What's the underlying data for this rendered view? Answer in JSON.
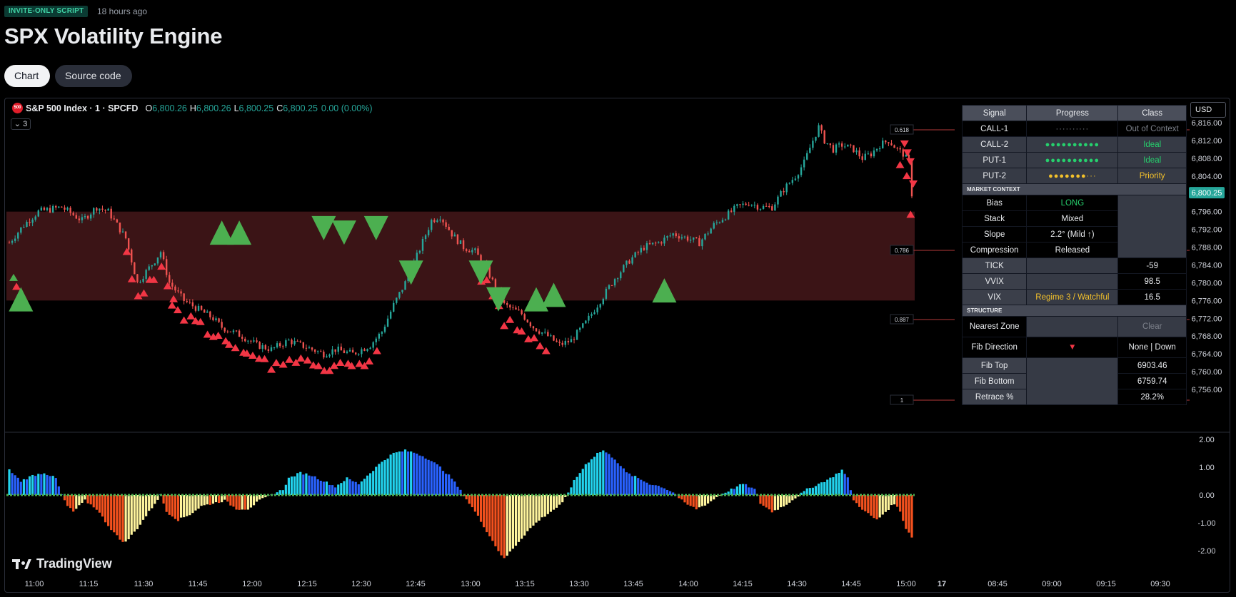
{
  "header": {
    "badge": "INVITE-ONLY SCRIPT",
    "timestamp": "18 hours ago",
    "title": "SPX Volatility Engine",
    "tabs": {
      "chart": "Chart",
      "source": "Source code"
    }
  },
  "symbol": {
    "logo": "500",
    "name": "S&P 500 Index · 1 · SPCFD",
    "open_k": "O",
    "open": "6,800.26",
    "high_k": "H",
    "high": "6,800.26",
    "low_k": "L",
    "low": "6,800.25",
    "close_k": "C",
    "close": "6,800.25",
    "change": "0.00 (0.00%)",
    "indicator_count": "3"
  },
  "currency": "USD",
  "brand": "TradingView",
  "colors": {
    "up": "#26a69a",
    "down": "#ef5350",
    "zone": "#3b1416",
    "buy_marker": "#4caf50",
    "sell_marker": "#f23645",
    "hist_blue": "#2962ff",
    "hist_cyan": "#22d3ee",
    "hist_red": "#f4511e",
    "hist_yellow": "#fff59d"
  },
  "table": {
    "headers": {
      "signal": "Signal",
      "progress": "Progress",
      "class": "Class"
    },
    "signals": [
      {
        "name": "CALL-1",
        "progress": "··········",
        "class": "Out of Context"
      },
      {
        "name": "CALL-2",
        "progress": "●●●●●●●●●●",
        "class": "Ideal"
      },
      {
        "name": "PUT-1",
        "progress": "●●●●●●●●●●",
        "class": "Ideal"
      },
      {
        "name": "PUT-2",
        "progress": "●●●●●●●···",
        "class": "Priority"
      }
    ],
    "market_context_label": "MARKET CONTEXT",
    "bias_label": "Bias",
    "bias": "LONG",
    "stack_label": "Stack",
    "stack": "Mixed",
    "slope_label": "Slope",
    "slope": "2.2° (Mild ↑)",
    "compression_label": "Compression",
    "compression": "Released",
    "tick_label": "TICK",
    "tick": "-59",
    "vvix_label": "VVIX",
    "vvix": "98.5",
    "vix_label": "VIX",
    "vix_regime": "Regime 3 / Watchful",
    "vix": "16.5",
    "structure_label": "STRUCTURE",
    "nearest_zone_label": "Nearest Zone",
    "nearest_zone": "Clear",
    "fib_direction_label": "Fib Direction",
    "fib_direction_icon": "▼",
    "fib_direction": "None | Down",
    "fib_top_label": "Fib Top",
    "fib_top": "6903.46",
    "fib_bottom_label": "Fib Bottom",
    "fib_bottom": "6759.74",
    "retrace_label": "Retrace %",
    "retrace": "28.2%"
  },
  "chart_data": {
    "type": "candlestick",
    "price_axis": [
      "6,816.00",
      "6,812.00",
      "6,808.00",
      "6,804.00",
      "6,800.25",
      "6,796.00",
      "6,792.00",
      "6,788.00",
      "6,784.00",
      "6,780.00",
      "6,776.00",
      "6,772.00",
      "6,768.00",
      "6,764.00",
      "6,760.00",
      "6,756.00"
    ],
    "last_price": "6,800.25",
    "osc_axis": [
      "2.00",
      "1.00",
      "0.00",
      "-1.00",
      "-2.00"
    ],
    "time_axis": [
      "11:00",
      "11:15",
      "11:30",
      "11:45",
      "12:00",
      "12:15",
      "12:30",
      "12:45",
      "13:00",
      "13:15",
      "13:30",
      "13:45",
      "14:00",
      "14:15",
      "14:30",
      "14:45",
      "15:00",
      "17",
      "08:45",
      "09:00",
      "09:15",
      "09:30"
    ],
    "fib_labels": [
      "0.618",
      "0.786",
      "0.887",
      "1"
    ],
    "zone_range": [
      6776,
      6796
    ],
    "price_path": [
      [
        0,
        6789
      ],
      [
        5,
        6793
      ],
      [
        10,
        6796
      ],
      [
        18,
        6797
      ],
      [
        25,
        6794
      ],
      [
        30,
        6797
      ],
      [
        34,
        6796
      ],
      [
        40,
        6790
      ],
      [
        44,
        6780
      ],
      [
        50,
        6785
      ],
      [
        52,
        6787
      ],
      [
        55,
        6780
      ],
      [
        60,
        6776
      ],
      [
        65,
        6774
      ],
      [
        70,
        6772
      ],
      [
        73,
        6770
      ],
      [
        80,
        6768
      ],
      [
        85,
        6766
      ],
      [
        90,
        6765
      ],
      [
        96,
        6767
      ],
      [
        100,
        6766
      ],
      [
        108,
        6764
      ],
      [
        112,
        6765
      ],
      [
        118,
        6764
      ],
      [
        124,
        6766
      ],
      [
        128,
        6769
      ],
      [
        132,
        6775
      ],
      [
        136,
        6780
      ],
      [
        140,
        6786
      ],
      [
        145,
        6794
      ],
      [
        148,
        6795
      ],
      [
        152,
        6791
      ],
      [
        156,
        6788
      ],
      [
        160,
        6787
      ],
      [
        164,
        6783
      ],
      [
        170,
        6775
      ],
      [
        176,
        6773
      ],
      [
        180,
        6770
      ],
      [
        185,
        6768
      ],
      [
        189,
        6766
      ],
      [
        193,
        6767
      ],
      [
        198,
        6771
      ],
      [
        203,
        6776
      ],
      [
        208,
        6781
      ],
      [
        213,
        6785
      ],
      [
        218,
        6788
      ],
      [
        223,
        6789
      ],
      [
        228,
        6791
      ],
      [
        233,
        6790
      ],
      [
        237,
        6789
      ],
      [
        242,
        6793
      ],
      [
        246,
        6795
      ],
      [
        250,
        6797
      ],
      [
        254,
        6798
      ],
      [
        258,
        6797
      ],
      [
        262,
        6797
      ],
      [
        266,
        6801
      ],
      [
        270,
        6804
      ],
      [
        273,
        6807
      ],
      [
        276,
        6812
      ],
      [
        278,
        6815
      ],
      [
        280,
        6812
      ],
      [
        283,
        6810
      ],
      [
        286,
        6811
      ],
      [
        290,
        6810
      ],
      [
        293,
        6808
      ],
      [
        296,
        6809
      ],
      [
        299,
        6811
      ],
      [
        302,
        6812
      ],
      [
        305,
        6810
      ],
      [
        307,
        6809
      ],
      [
        309,
        6807
      ],
      [
        310,
        6800
      ]
    ],
    "buy_markers": [
      [
        4,
        6779
      ],
      [
        73,
        6794
      ],
      [
        79,
        6794
      ],
      [
        181,
        6779
      ],
      [
        187,
        6780
      ],
      [
        225,
        6781
      ]
    ],
    "sell_markers": [
      [
        108,
        6795
      ],
      [
        115,
        6794
      ],
      [
        126,
        6795
      ],
      [
        138,
        6785
      ],
      [
        162,
        6785
      ],
      [
        168,
        6779
      ]
    ],
    "oscillator": [
      [
        0,
        0.9
      ],
      [
        4,
        0.5
      ],
      [
        8,
        0.7
      ],
      [
        12,
        0.8
      ],
      [
        16,
        0.6
      ],
      [
        18,
        0.0
      ],
      [
        20,
        -0.4
      ],
      [
        22,
        -0.6
      ],
      [
        26,
        -0.2
      ],
      [
        30,
        -0.5
      ],
      [
        34,
        -1.1
      ],
      [
        38,
        -1.6
      ],
      [
        40,
        -1.7
      ],
      [
        44,
        -1.2
      ],
      [
        48,
        -0.6
      ],
      [
        52,
        0.0
      ],
      [
        54,
        -0.6
      ],
      [
        58,
        -0.9
      ],
      [
        62,
        -0.7
      ],
      [
        66,
        -0.4
      ],
      [
        70,
        -0.3
      ],
      [
        74,
        -0.2
      ],
      [
        78,
        -0.5
      ],
      [
        82,
        -0.5
      ],
      [
        86,
        -0.2
      ],
      [
        90,
        0.0
      ],
      [
        94,
        0.2
      ],
      [
        96,
        0.6
      ],
      [
        100,
        0.8
      ],
      [
        104,
        0.7
      ],
      [
        108,
        0.5
      ],
      [
        112,
        0.3
      ],
      [
        116,
        0.6
      ],
      [
        120,
        0.4
      ],
      [
        124,
        0.8
      ],
      [
        128,
        1.2
      ],
      [
        132,
        1.5
      ],
      [
        136,
        1.6
      ],
      [
        140,
        1.5
      ],
      [
        144,
        1.3
      ],
      [
        148,
        1.0
      ],
      [
        152,
        0.6
      ],
      [
        156,
        0.0
      ],
      [
        160,
        -0.6
      ],
      [
        164,
        -1.3
      ],
      [
        168,
        -2.0
      ],
      [
        170,
        -2.3
      ],
      [
        174,
        -1.8
      ],
      [
        178,
        -1.3
      ],
      [
        182,
        -0.9
      ],
      [
        186,
        -0.6
      ],
      [
        190,
        -0.3
      ],
      [
        194,
        0.5
      ],
      [
        198,
        1.1
      ],
      [
        202,
        1.5
      ],
      [
        204,
        1.6
      ],
      [
        208,
        1.3
      ],
      [
        212,
        0.8
      ],
      [
        216,
        0.6
      ],
      [
        220,
        0.4
      ],
      [
        224,
        0.3
      ],
      [
        228,
        0.1
      ],
      [
        232,
        -0.3
      ],
      [
        236,
        -0.5
      ],
      [
        240,
        -0.3
      ],
      [
        244,
        0.0
      ],
      [
        248,
        0.2
      ],
      [
        252,
        0.4
      ],
      [
        256,
        0.2
      ],
      [
        258,
        -0.3
      ],
      [
        262,
        -0.6
      ],
      [
        266,
        -0.4
      ],
      [
        270,
        -0.1
      ],
      [
        274,
        0.2
      ],
      [
        278,
        0.4
      ],
      [
        282,
        0.6
      ],
      [
        286,
        0.9
      ],
      [
        288,
        0.6
      ],
      [
        290,
        -0.2
      ],
      [
        294,
        -0.6
      ],
      [
        298,
        -0.9
      ],
      [
        300,
        -0.7
      ],
      [
        304,
        -0.3
      ],
      [
        306,
        -0.6
      ],
      [
        308,
        -1.2
      ],
      [
        310,
        -1.5
      ]
    ]
  }
}
